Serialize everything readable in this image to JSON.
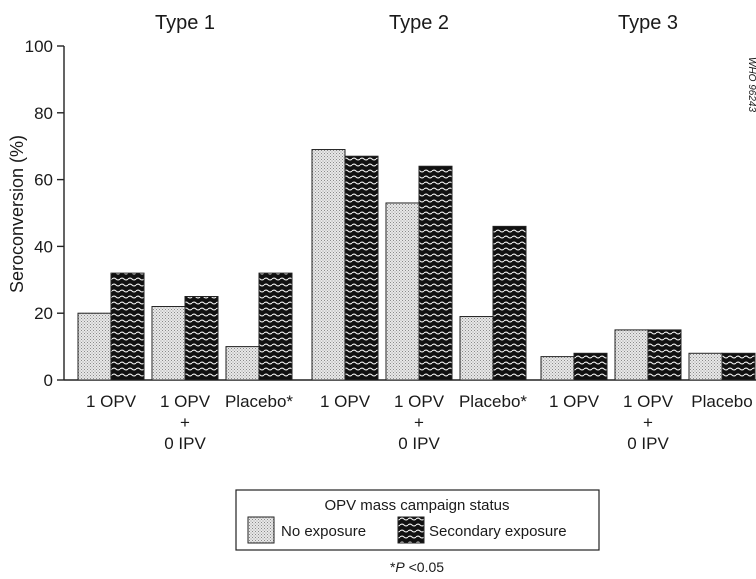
{
  "chart_data": {
    "type": "bar",
    "ylabel": "Seroconversion (%)",
    "ylim": [
      0,
      100
    ],
    "yticks": [
      0,
      20,
      40,
      60,
      80,
      100
    ],
    "watermark": "WHO 96243",
    "groups": [
      {
        "title": "Type 1",
        "categories": [
          {
            "lines": [
              "1 OPV"
            ],
            "no_exposure": 20,
            "secondary_exposure": 32
          },
          {
            "lines": [
              "1 OPV",
              "+",
              "0 IPV"
            ],
            "no_exposure": 22,
            "secondary_exposure": 25
          },
          {
            "lines": [
              "Placebo*"
            ],
            "no_exposure": 10,
            "secondary_exposure": 32
          }
        ]
      },
      {
        "title": "Type 2",
        "categories": [
          {
            "lines": [
              "1 OPV"
            ],
            "no_exposure": 69,
            "secondary_exposure": 67
          },
          {
            "lines": [
              "1 OPV",
              "+",
              "0 IPV"
            ],
            "no_exposure": 53,
            "secondary_exposure": 64
          },
          {
            "lines": [
              "Placebo*"
            ],
            "no_exposure": 19,
            "secondary_exposure": 46
          }
        ]
      },
      {
        "title": "Type 3",
        "categories": [
          {
            "lines": [
              "1 OPV"
            ],
            "no_exposure": 7,
            "secondary_exposure": 8
          },
          {
            "lines": [
              "1 OPV",
              "+",
              "0 IPV"
            ],
            "no_exposure": 15,
            "secondary_exposure": 15
          },
          {
            "lines": [
              "Placebo"
            ],
            "no_exposure": 8,
            "secondary_exposure": 8
          }
        ]
      }
    ],
    "legend": {
      "title": "OPV mass campaign status",
      "placement": "bottom-center",
      "items": [
        {
          "key": "no_exposure",
          "label": "No exposure"
        },
        {
          "key": "secondary_exposure",
          "label": "Secondary exposure"
        }
      ]
    },
    "footnote": {
      "marker": "*",
      "variable": "P",
      "rest": " <0.05"
    }
  }
}
